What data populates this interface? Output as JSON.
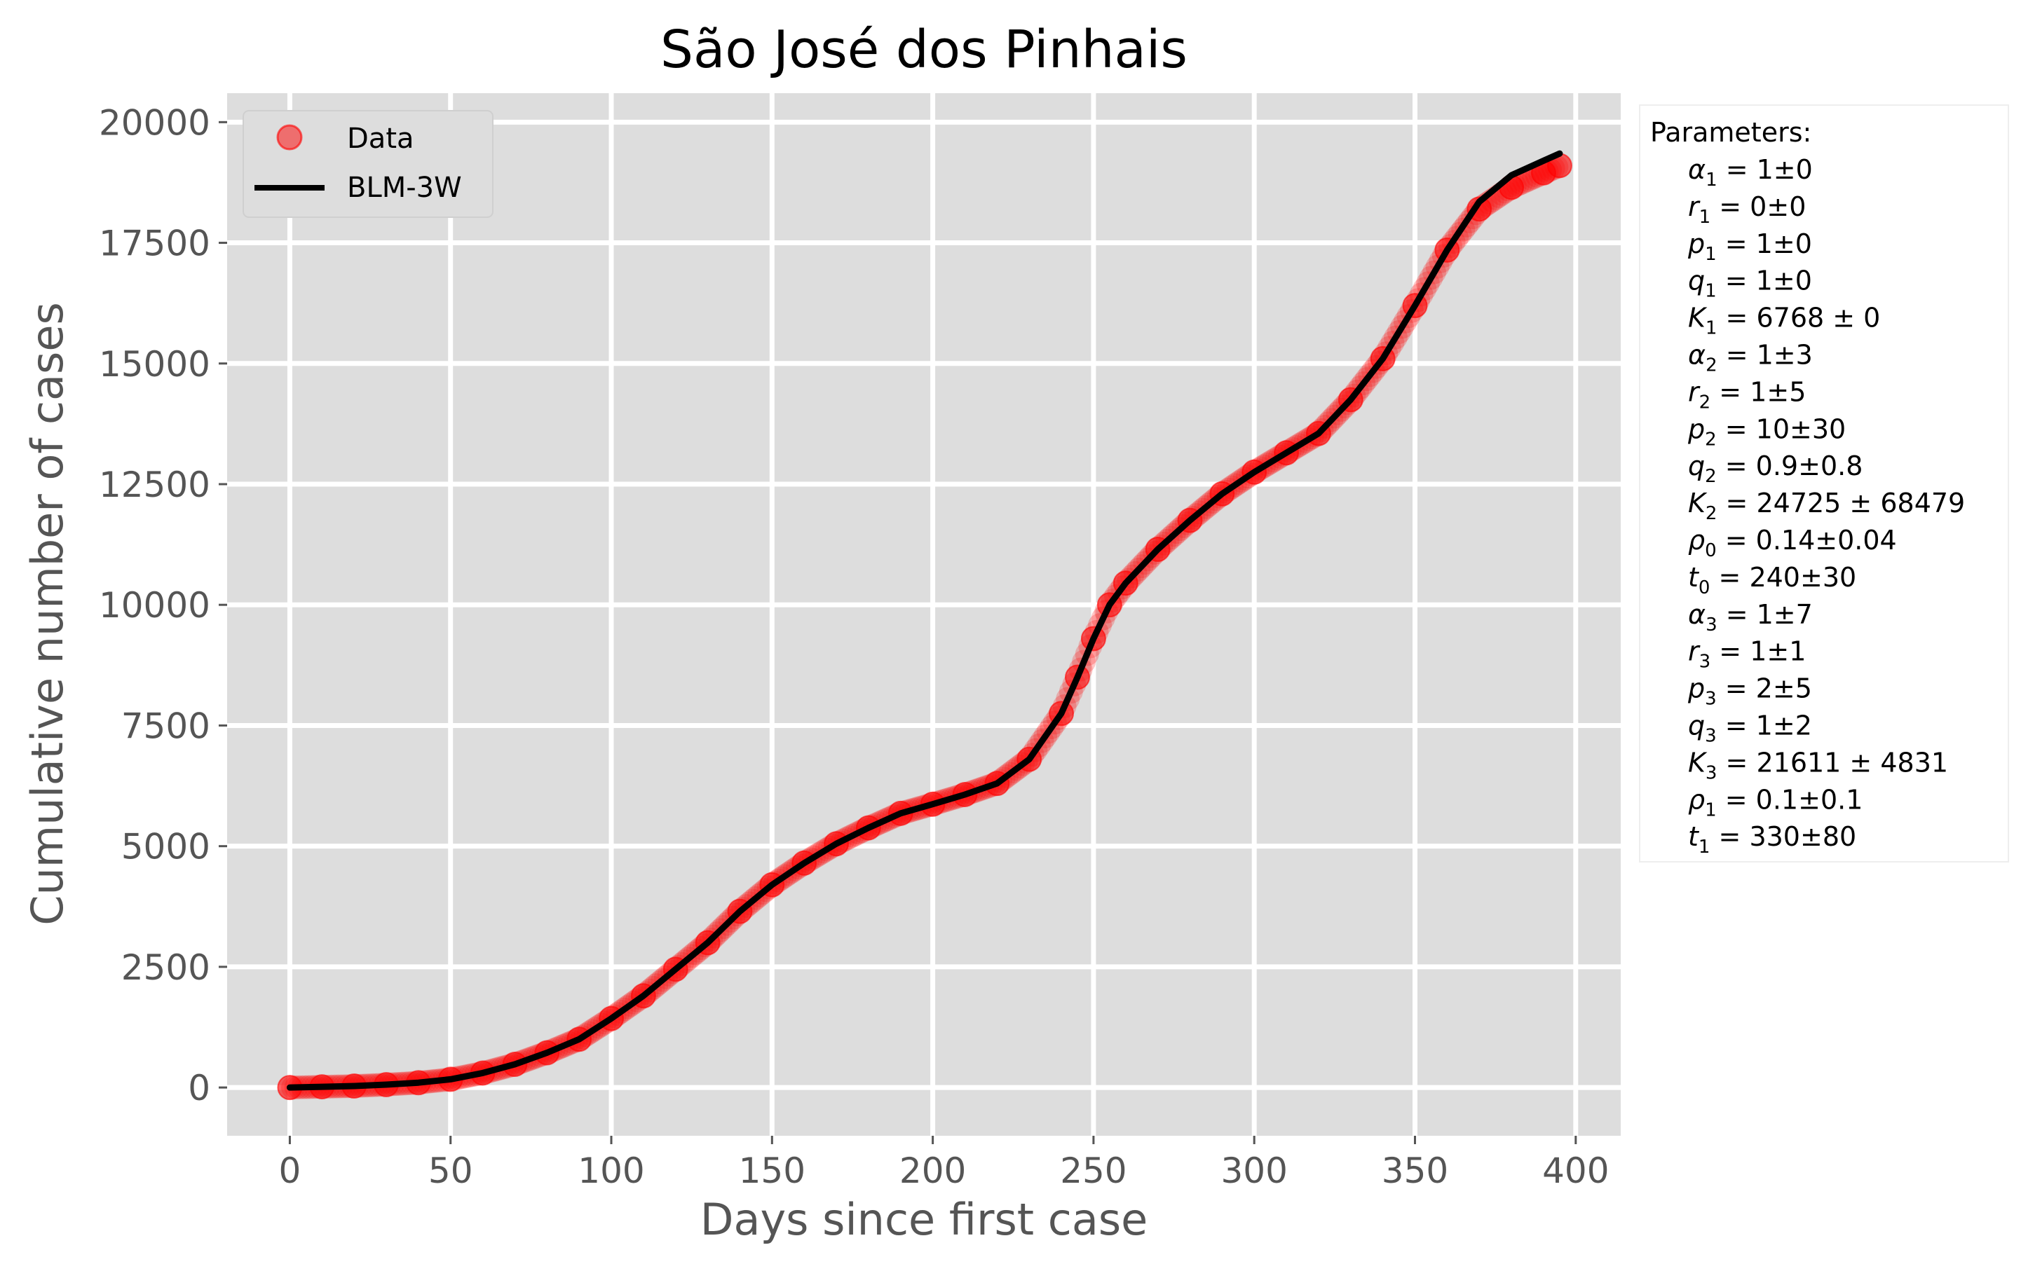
{
  "chart_data": {
    "type": "scatter",
    "title": "São José dos Pinhais",
    "xlabel": "Days since first case",
    "ylabel": "Cumulative  number of cases",
    "xlim": [
      -19.5,
      414
    ],
    "ylim": [
      -1000,
      20600
    ],
    "x_ticks": [
      0,
      50,
      100,
      150,
      200,
      250,
      300,
      350,
      400
    ],
    "y_ticks": [
      0,
      2500,
      5000,
      7500,
      10000,
      12500,
      15000,
      17500,
      20000
    ],
    "grid": true,
    "legend_position": "top-left",
    "colors": {
      "data": "#ff0000",
      "fit": "#000000",
      "plot_background": "#dddddd",
      "grid": "#ffffff"
    },
    "series": [
      {
        "name": "Data",
        "kind": "points",
        "x": [
          0,
          10,
          20,
          30,
          40,
          50,
          60,
          70,
          80,
          90,
          100,
          110,
          120,
          130,
          140,
          150,
          160,
          170,
          180,
          190,
          200,
          210,
          220,
          230,
          240,
          245,
          250,
          255,
          260,
          270,
          280,
          290,
          300,
          310,
          320,
          330,
          340,
          350,
          360,
          370,
          380,
          390,
          395
        ],
        "y": [
          0,
          15,
          30,
          60,
          100,
          170,
          300,
          480,
          720,
          1000,
          1430,
          1900,
          2450,
          3000,
          3650,
          4200,
          4650,
          5050,
          5380,
          5680,
          5870,
          6070,
          6300,
          6800,
          7750,
          8500,
          9300,
          10000,
          10450,
          11150,
          11750,
          12300,
          12750,
          13150,
          13550,
          14250,
          15100,
          16200,
          17350,
          18200,
          18650,
          18950,
          19100
        ]
      },
      {
        "name": "BLM-3W",
        "kind": "line",
        "x": [
          0,
          10,
          20,
          30,
          40,
          50,
          60,
          70,
          80,
          90,
          100,
          110,
          120,
          130,
          140,
          150,
          160,
          170,
          180,
          190,
          200,
          210,
          220,
          230,
          240,
          245,
          250,
          255,
          260,
          270,
          280,
          290,
          300,
          310,
          320,
          330,
          340,
          350,
          360,
          370,
          380,
          390,
          395
        ],
        "y": [
          0,
          15,
          30,
          60,
          100,
          170,
          300,
          480,
          720,
          1000,
          1430,
          1900,
          2450,
          3000,
          3650,
          4200,
          4650,
          5050,
          5380,
          5680,
          5870,
          6070,
          6300,
          6800,
          7750,
          8500,
          9300,
          10000,
          10450,
          11150,
          11750,
          12300,
          12750,
          13150,
          13550,
          14250,
          15100,
          16200,
          17350,
          18350,
          18900,
          19200,
          19350
        ]
      }
    ],
    "parameters_box": {
      "heading": "Parameters:",
      "items": [
        {
          "sym": "α",
          "sub": "1",
          "rel": " = ",
          "val": "1±0"
        },
        {
          "sym": "r",
          "sub": "1",
          "rel": " = ",
          "val": "0±0"
        },
        {
          "sym": "p",
          "sub": "1",
          "rel": " = ",
          "val": "1±0"
        },
        {
          "sym": "q",
          "sub": "1",
          "rel": " = ",
          "val": "1±0"
        },
        {
          "sym": "K",
          "sub": "1",
          "rel": " = ",
          "val": "6768 ± 0"
        },
        {
          "sym": "α",
          "sub": "2",
          "rel": " = ",
          "val": "1±3"
        },
        {
          "sym": "r",
          "sub": "2",
          "rel": " = ",
          "val": "1±5"
        },
        {
          "sym": "p",
          "sub": "2",
          "rel": " = ",
          "val": "10±30"
        },
        {
          "sym": "q",
          "sub": "2",
          "rel": " = ",
          "val": "0.9±0.8"
        },
        {
          "sym": "K",
          "sub": "2",
          "rel": " = ",
          "val": "24725 ± 68479"
        },
        {
          "sym": "ρ",
          "sub": "0",
          "rel": " = ",
          "val": "0.14±0.04"
        },
        {
          "sym": "t",
          "sub": "0",
          "rel": " = ",
          "val": "240±30"
        },
        {
          "sym": "α",
          "sub": "3",
          "rel": " = ",
          "val": "1±7"
        },
        {
          "sym": "r",
          "sub": "3",
          "rel": " = ",
          "val": "1±1"
        },
        {
          "sym": "p",
          "sub": "3",
          "rel": " = ",
          "val": "2±5"
        },
        {
          "sym": "q",
          "sub": "3",
          "rel": " = ",
          "val": "1±2"
        },
        {
          "sym": "K",
          "sub": "3",
          "rel": " = ",
          "val": "21611 ± 4831"
        },
        {
          "sym": "ρ",
          "sub": "1",
          "rel": " = ",
          "val": "0.1±0.1"
        },
        {
          "sym": "t",
          "sub": "1",
          "rel": " = ",
          "val": "330±80"
        }
      ]
    }
  }
}
